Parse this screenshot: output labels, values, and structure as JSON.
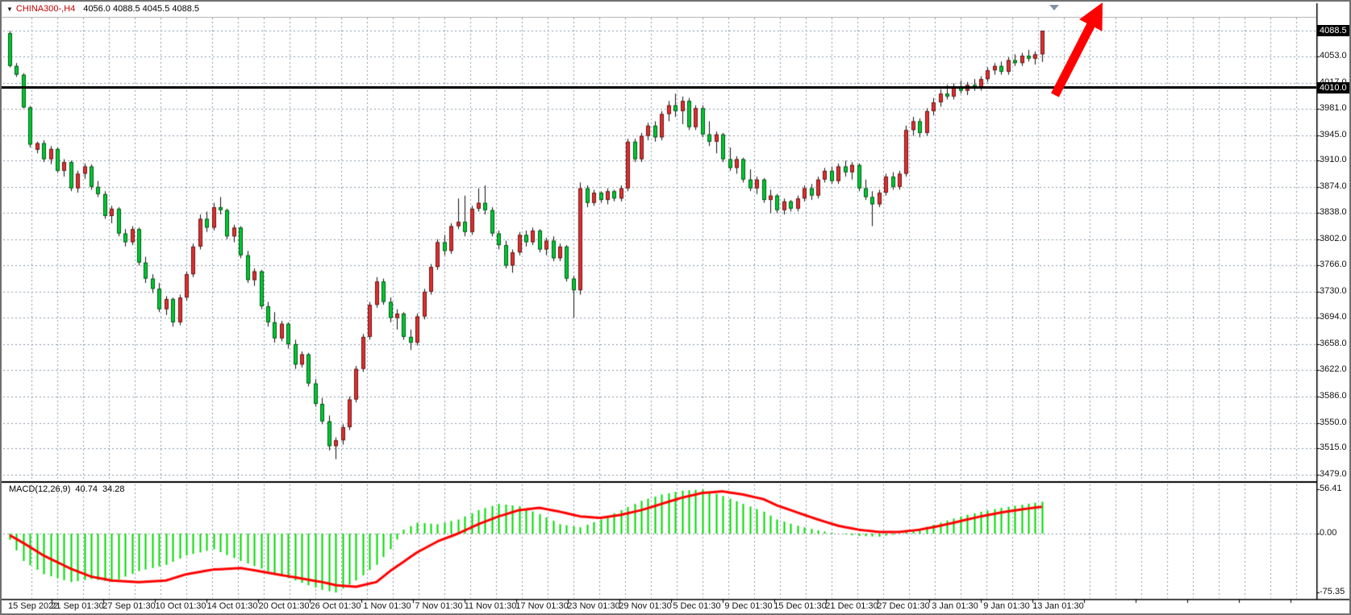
{
  "header": {
    "dropdown_icon": "▼",
    "symbol": "CHINA300-,H4",
    "ohlc": "4056.0 4088.5 4045.5 4088.5"
  },
  "price_axis": {
    "current_badge": "4088.5",
    "hline_badge": "4010.0"
  },
  "annotations": {
    "trend_arrow_direction": "up",
    "trend_arrow_color": "#ff0000",
    "horizontal_line_price": 4010
  },
  "colors": {
    "up_candle": "#e03030",
    "down_candle": "#00c832",
    "wick": "#111111",
    "macd_histogram": "#00d800",
    "macd_signal": "#ff0000",
    "grid": "#8b99a9",
    "badge_bg": "#000000",
    "badge_text": "#ffffff",
    "symbol_text": "#c00000"
  },
  "chart_data": {
    "type": "candlestick",
    "symbol": "CHINA300-",
    "timeframe": "H4",
    "ohlc_current": {
      "open": 4056.0,
      "high": 4088.5,
      "low": 4045.5,
      "close": 4088.5
    },
    "price_axis_top_gridline": 4089,
    "price_ticks": [
      4053,
      4017,
      3981,
      3945,
      3910,
      3874,
      3838,
      3802,
      3766,
      3730,
      3694,
      3658,
      3622,
      3586,
      3550,
      3515,
      3479
    ],
    "horizontal_line": 4010,
    "x_labels": [
      "15 Sep 2022",
      "21 Sep 01:30",
      "27 Sep 01:30",
      "10 Oct 01:30",
      "14 Oct 01:30",
      "20 Oct 01:30",
      "26 Oct 01:30",
      "1 Nov 01:30",
      "7 Nov 01:30",
      "11 Nov 01:30",
      "17 Nov 01:30",
      "23 Nov 01:30",
      "29 Nov 01:30",
      "5 Dec 01:30",
      "9 Dec 01:30",
      "15 Dec 01:30",
      "21 Dec 01:30",
      "27 Dec 01:30",
      "3 Jan 01:30",
      "9 Jan 01:30",
      "13 Jan 01:30"
    ],
    "candles": [
      [
        4085,
        4088,
        4038,
        4040
      ],
      [
        4040,
        4044,
        4025,
        4028
      ],
      [
        4028,
        4030,
        3982,
        3983
      ],
      [
        3983,
        3985,
        3928,
        3932
      ],
      [
        3925,
        3936,
        3920,
        3934
      ],
      [
        3934,
        3938,
        3908,
        3912
      ],
      [
        3912,
        3930,
        3905,
        3926
      ],
      [
        3926,
        3928,
        3893,
        3896
      ],
      [
        3896,
        3912,
        3888,
        3908
      ],
      [
        3908,
        3910,
        3868,
        3872
      ],
      [
        3872,
        3896,
        3866,
        3892
      ],
      [
        3892,
        3906,
        3885,
        3902
      ],
      [
        3902,
        3905,
        3870,
        3874
      ],
      [
        3874,
        3882,
        3860,
        3864
      ],
      [
        3864,
        3868,
        3830,
        3834
      ],
      [
        3834,
        3848,
        3824,
        3844
      ],
      [
        3844,
        3846,
        3806,
        3810
      ],
      [
        3810,
        3816,
        3792,
        3798
      ],
      [
        3798,
        3820,
        3794,
        3816
      ],
      [
        3816,
        3818,
        3766,
        3770
      ],
      [
        3770,
        3778,
        3742,
        3748
      ],
      [
        3748,
        3754,
        3728,
        3734
      ],
      [
        3734,
        3742,
        3702,
        3706
      ],
      [
        3706,
        3724,
        3698,
        3720
      ],
      [
        3720,
        3722,
        3682,
        3688
      ],
      [
        3688,
        3726,
        3684,
        3722
      ],
      [
        3722,
        3758,
        3718,
        3754
      ],
      [
        3754,
        3796,
        3750,
        3792
      ],
      [
        3792,
        3836,
        3788,
        3830
      ],
      [
        3830,
        3840,
        3812,
        3818
      ],
      [
        3818,
        3852,
        3814,
        3846
      ],
      [
        3846,
        3860,
        3836,
        3842
      ],
      [
        3842,
        3844,
        3802,
        3806
      ],
      [
        3806,
        3822,
        3798,
        3818
      ],
      [
        3818,
        3820,
        3776,
        3780
      ],
      [
        3780,
        3786,
        3742,
        3746
      ],
      [
        3746,
        3762,
        3738,
        3758
      ],
      [
        3758,
        3760,
        3706,
        3710
      ],
      [
        3710,
        3716,
        3682,
        3688
      ],
      [
        3688,
        3702,
        3660,
        3666
      ],
      [
        3666,
        3690,
        3662,
        3686
      ],
      [
        3686,
        3688,
        3652,
        3658
      ],
      [
        3658,
        3664,
        3624,
        3630
      ],
      [
        3630,
        3648,
        3626,
        3644
      ],
      [
        3644,
        3646,
        3600,
        3604
      ],
      [
        3604,
        3610,
        3572,
        3576
      ],
      [
        3576,
        3584,
        3548,
        3552
      ],
      [
        3552,
        3560,
        3512,
        3518
      ],
      [
        3518,
        3530,
        3500,
        3526
      ],
      [
        3526,
        3548,
        3520,
        3544
      ],
      [
        3544,
        3586,
        3540,
        3582
      ],
      [
        3582,
        3628,
        3578,
        3624
      ],
      [
        3624,
        3672,
        3620,
        3668
      ],
      [
        3668,
        3716,
        3664,
        3712
      ],
      [
        3712,
        3750,
        3708,
        3744
      ],
      [
        3744,
        3748,
        3712,
        3716
      ],
      [
        3716,
        3722,
        3688,
        3694
      ],
      [
        3694,
        3706,
        3678,
        3700
      ],
      [
        3700,
        3702,
        3664,
        3668
      ],
      [
        3668,
        3678,
        3650,
        3660
      ],
      [
        3660,
        3700,
        3656,
        3696
      ],
      [
        3696,
        3734,
        3692,
        3730
      ],
      [
        3730,
        3768,
        3726,
        3764
      ],
      [
        3764,
        3802,
        3760,
        3798
      ],
      [
        3798,
        3808,
        3780,
        3786
      ],
      [
        3786,
        3824,
        3782,
        3820
      ],
      [
        3820,
        3858,
        3816,
        3826
      ],
      [
        3826,
        3862,
        3806,
        3812
      ],
      [
        3812,
        3848,
        3808,
        3844
      ],
      [
        3844,
        3872,
        3840,
        3852
      ],
      [
        3852,
        3876,
        3836,
        3842
      ],
      [
        3842,
        3846,
        3806,
        3810
      ],
      [
        3810,
        3814,
        3788,
        3794
      ],
      [
        3794,
        3800,
        3762,
        3766
      ],
      [
        3766,
        3788,
        3756,
        3784
      ],
      [
        3784,
        3812,
        3780,
        3808
      ],
      [
        3808,
        3814,
        3792,
        3798
      ],
      [
        3798,
        3818,
        3794,
        3814
      ],
      [
        3814,
        3816,
        3784,
        3788
      ],
      [
        3788,
        3804,
        3780,
        3800
      ],
      [
        3800,
        3806,
        3772,
        3776
      ],
      [
        3776,
        3796,
        3772,
        3792
      ],
      [
        3792,
        3794,
        3744,
        3748
      ],
      [
        3748,
        3752,
        3694,
        3732
      ],
      [
        3732,
        3880,
        3726,
        3872
      ],
      [
        3872,
        3876,
        3846,
        3852
      ],
      [
        3852,
        3870,
        3848,
        3866
      ],
      [
        3866,
        3868,
        3852,
        3856
      ],
      [
        3856,
        3872,
        3850,
        3868
      ],
      [
        3868,
        3870,
        3854,
        3858
      ],
      [
        3858,
        3876,
        3854,
        3872
      ],
      [
        3872,
        3940,
        3868,
        3936
      ],
      [
        3936,
        3940,
        3908,
        3912
      ],
      [
        3912,
        3948,
        3908,
        3944
      ],
      [
        3944,
        3962,
        3938,
        3958
      ],
      [
        3958,
        3964,
        3936,
        3942
      ],
      [
        3942,
        3978,
        3938,
        3974
      ],
      [
        3974,
        3992,
        3964,
        3986
      ],
      [
        3986,
        4002,
        3970,
        3978
      ],
      [
        3978,
        3998,
        3960,
        3992
      ],
      [
        3992,
        3996,
        3952,
        3956
      ],
      [
        3956,
        3986,
        3952,
        3982
      ],
      [
        3982,
        3986,
        3942,
        3946
      ],
      [
        3946,
        3964,
        3930,
        3936
      ],
      [
        3936,
        3950,
        3920,
        3946
      ],
      [
        3946,
        3948,
        3908,
        3912
      ],
      [
        3912,
        3928,
        3896,
        3900
      ],
      [
        3900,
        3916,
        3892,
        3912
      ],
      [
        3912,
        3914,
        3880,
        3884
      ],
      [
        3884,
        3898,
        3868,
        3872
      ],
      [
        3872,
        3888,
        3864,
        3884
      ],
      [
        3884,
        3886,
        3852,
        3856
      ],
      [
        3856,
        3870,
        3838,
        3862
      ],
      [
        3862,
        3864,
        3838,
        3842
      ],
      [
        3842,
        3858,
        3836,
        3854
      ],
      [
        3854,
        3856,
        3840,
        3844
      ],
      [
        3844,
        3862,
        3840,
        3858
      ],
      [
        3858,
        3876,
        3854,
        3872
      ],
      [
        3872,
        3878,
        3856,
        3862
      ],
      [
        3862,
        3888,
        3858,
        3884
      ],
      [
        3884,
        3900,
        3880,
        3896
      ],
      [
        3896,
        3902,
        3878,
        3882
      ],
      [
        3882,
        3906,
        3878,
        3902
      ],
      [
        3902,
        3910,
        3888,
        3894
      ],
      [
        3894,
        3908,
        3884,
        3904
      ],
      [
        3904,
        3906,
        3868,
        3872
      ],
      [
        3872,
        3884,
        3856,
        3860
      ],
      [
        3860,
        3868,
        3820,
        3850
      ],
      [
        3850,
        3870,
        3846,
        3866
      ],
      [
        3866,
        3892,
        3862,
        3888
      ],
      [
        3888,
        3894,
        3870,
        3874
      ],
      [
        3874,
        3896,
        3870,
        3892
      ],
      [
        3892,
        3958,
        3888,
        3952
      ],
      [
        3952,
        3970,
        3944,
        3964
      ],
      [
        3964,
        3968,
        3942,
        3948
      ],
      [
        3948,
        3982,
        3944,
        3978
      ],
      [
        3978,
        3996,
        3972,
        3990
      ],
      [
        3990,
        4008,
        3984,
        4002
      ],
      [
        4002,
        4014,
        3994,
        3998
      ],
      [
        3998,
        4016,
        3994,
        4012
      ],
      [
        4012,
        4020,
        4002,
        4006
      ],
      [
        4006,
        4018,
        4000,
        4014
      ],
      [
        4014,
        4022,
        4006,
        4010
      ],
      [
        4010,
        4026,
        4006,
        4022
      ],
      [
        4022,
        4038,
        4018,
        4034
      ],
      [
        4034,
        4044,
        4028,
        4040
      ],
      [
        4040,
        4046,
        4028,
        4032
      ],
      [
        4032,
        4052,
        4028,
        4048
      ],
      [
        4048,
        4056,
        4040,
        4044
      ],
      [
        4044,
        4058,
        4040,
        4054
      ],
      [
        4054,
        4062,
        4046,
        4050
      ],
      [
        4050,
        4060,
        4042,
        4056
      ],
      [
        4056,
        4088.5,
        4045.5,
        4088.5
      ]
    ],
    "macd": {
      "label": "MACD(12,26,9)",
      "value": "40.74",
      "signal": "34.28",
      "axis_ticks": [
        56.41,
        0,
        -75.35
      ],
      "anchors": [
        [
          0,
          -8,
          -2
        ],
        [
          2,
          -35,
          -12
        ],
        [
          5,
          -52,
          -28
        ],
        [
          9,
          -62,
          -45
        ],
        [
          12,
          -58,
          -55
        ],
        [
          15,
          -62,
          -60
        ],
        [
          19,
          -48,
          -62
        ],
        [
          23,
          -40,
          -60
        ],
        [
          26,
          -28,
          -52
        ],
        [
          30,
          -20,
          -46
        ],
        [
          34,
          -35,
          -44
        ],
        [
          38,
          -48,
          -50
        ],
        [
          42,
          -60,
          -56
        ],
        [
          46,
          -72,
          -62
        ],
        [
          48,
          -75.35,
          -66
        ],
        [
          51,
          -60,
          -68
        ],
        [
          54,
          -40,
          -62
        ],
        [
          56,
          -20,
          -48
        ],
        [
          58,
          5,
          -36
        ],
        [
          60,
          14,
          -24
        ],
        [
          63,
          12,
          -10
        ],
        [
          66,
          18,
          0
        ],
        [
          69,
          30,
          12
        ],
        [
          72,
          38,
          22
        ],
        [
          75,
          35,
          30
        ],
        [
          78,
          25,
          33
        ],
        [
          81,
          12,
          28
        ],
        [
          84,
          8,
          22
        ],
        [
          87,
          18,
          20
        ],
        [
          90,
          30,
          24
        ],
        [
          93,
          42,
          30
        ],
        [
          96,
          50,
          38
        ],
        [
          99,
          55,
          46
        ],
        [
          102,
          56.41,
          52
        ],
        [
          105,
          48,
          54
        ],
        [
          108,
          38,
          50
        ],
        [
          111,
          28,
          44
        ],
        [
          113,
          18,
          36
        ],
        [
          116,
          10,
          27
        ],
        [
          119,
          4,
          18
        ],
        [
          122,
          0,
          10
        ],
        [
          125,
          -3,
          5
        ],
        [
          128,
          -4,
          2
        ],
        [
          131,
          0,
          2
        ],
        [
          134,
          6,
          5
        ],
        [
          137,
          14,
          10
        ],
        [
          140,
          22,
          16
        ],
        [
          143,
          28,
          22
        ],
        [
          146,
          33,
          27
        ],
        [
          149,
          37,
          31
        ],
        [
          152,
          40.74,
          34.28
        ]
      ]
    }
  }
}
